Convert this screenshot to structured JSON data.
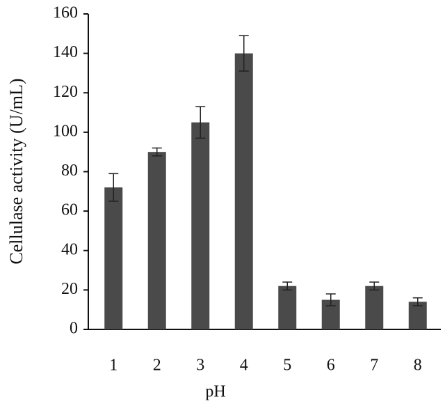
{
  "chart_data": {
    "type": "bar",
    "x_label": "pH",
    "y_label": "Cellulase activity (U/mL)",
    "categories": [
      "1",
      "2",
      "3",
      "4",
      "5",
      "6",
      "7",
      "8"
    ],
    "values": [
      72,
      90,
      105,
      140,
      22,
      15,
      22,
      14
    ],
    "errors": [
      7,
      2,
      8,
      9,
      2,
      3,
      2,
      2
    ],
    "color": "#4a4a4a",
    "ylim": [
      0,
      160
    ],
    "yticks": [
      0,
      20,
      40,
      60,
      80,
      100,
      120,
      140,
      160
    ],
    "grid": false
  }
}
